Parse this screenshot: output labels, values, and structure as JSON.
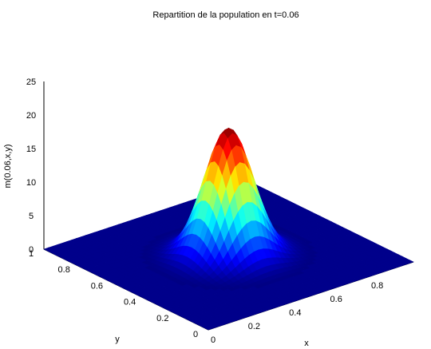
{
  "chart_data": {
    "type": "surface",
    "title": "Repartition de la population en t=0.06",
    "xlabel": "x",
    "ylabel": "y",
    "zlabel": "m(0.06,x,y)",
    "xlim": [
      0,
      1
    ],
    "ylim": [
      0,
      1
    ],
    "zlim": [
      0,
      25
    ],
    "x_ticks": [
      "0",
      "0.2",
      "0.4",
      "0.6",
      "0.8"
    ],
    "y_ticks": [
      "0",
      "0.2",
      "0.4",
      "0.6",
      "0.8",
      "1"
    ],
    "z_ticks": [
      "0",
      "5",
      "10",
      "15",
      "20",
      "25"
    ],
    "function": {
      "form": "gaussian",
      "peak": 19,
      "center_x": 0.5,
      "center_y": 0.5,
      "sigma": 0.095,
      "baseline": 0
    },
    "colormap": "jet",
    "grid": false
  }
}
